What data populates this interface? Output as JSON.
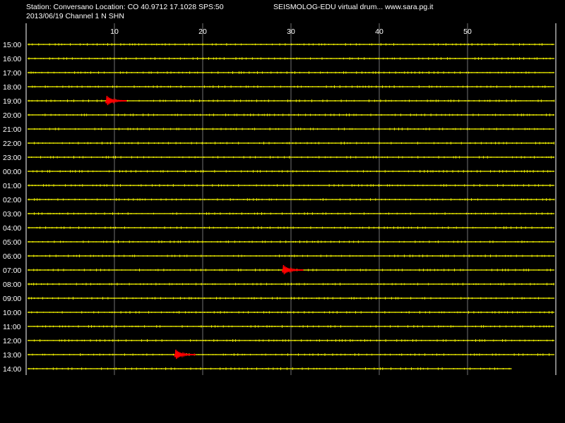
{
  "header": {
    "station_line": "Station: Conversano Location: CO 40.9712 17.1028 SPS:50",
    "app_title": "SEISMOLOG-EDU virtual drum... www.sara.pg.it",
    "date_channel": "2013/06/19  Channel 1 N SHN"
  },
  "colors": {
    "background": "#000000",
    "trace": "#ffff00",
    "event": "#ff0000",
    "grid": "#ffffff",
    "text": "#ffffff"
  },
  "x_axis": {
    "unit_range": [
      0,
      60
    ],
    "ticks": [
      {
        "value": 10,
        "label": "10"
      },
      {
        "value": 20,
        "label": "20"
      },
      {
        "value": 30,
        "label": "30"
      },
      {
        "value": 40,
        "label": "40"
      },
      {
        "value": 50,
        "label": "50"
      }
    ]
  },
  "hours": [
    "15:00",
    "16:00",
    "17:00",
    "18:00",
    "19:00",
    "20:00",
    "21:00",
    "22:00",
    "23:00",
    "00:00",
    "01:00",
    "02:00",
    "03:00",
    "04:00",
    "05:00",
    "06:00",
    "07:00",
    "08:00",
    "09:00",
    "10:00",
    "11:00",
    "12:00",
    "13:00",
    "14:00"
  ],
  "last_trace_end_minute": 55.0,
  "events": [
    {
      "hour": "19:00",
      "minute": 9.0
    },
    {
      "hour": "07:00",
      "minute": 29.0
    },
    {
      "hour": "13:00",
      "minute": 16.8
    }
  ]
}
